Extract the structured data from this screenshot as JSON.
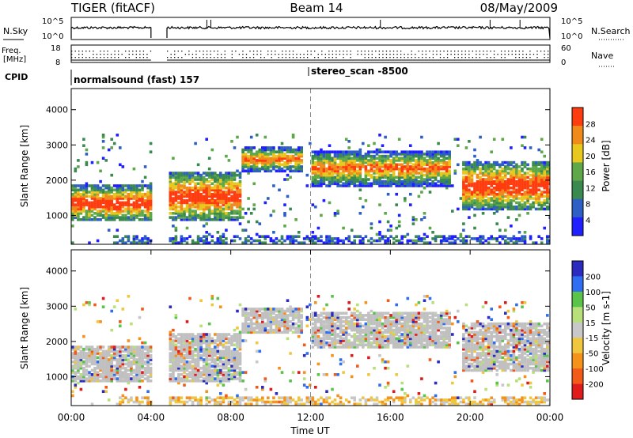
{
  "header": {
    "radar": "TIGER (fitACF)",
    "beam": "Beam 14",
    "date": "08/May/2009"
  },
  "noise_panel": {
    "left_label": "N.Sky",
    "right_label": "N.Search",
    "left_ticks": [
      "10^5",
      "10^0"
    ],
    "right_ticks": [
      "10^5",
      "10^0"
    ]
  },
  "freq_panel": {
    "label_line1": "Freq.",
    "label_line2": "[MHz]",
    "left_ticks": [
      "18",
      "8"
    ],
    "right_ticks": [
      "60",
      "0"
    ],
    "right_label": "Nave"
  },
  "cpid_panel": {
    "label": "CPID",
    "programs": [
      {
        "name": "normalsound (fast) 157",
        "start_hour": 0
      },
      {
        "name": "stereo_scan -8500",
        "start_hour": 12
      }
    ]
  },
  "colors": {
    "power_scale": [
      "#1f1fff",
      "#2e5fc4",
      "#3a8a4f",
      "#5fa84a",
      "#e8c81e",
      "#f08a1c",
      "#ff3c10"
    ],
    "velocity_scale": [
      "#2b2bbf",
      "#2f6ef0",
      "#59c34a",
      "#b8e07a",
      "#c8c8c8",
      "#f0c63e",
      "#f4921c",
      "#f25a1a",
      "#e01b1b"
    ],
    "ground_scatter": "#c0c0c0"
  },
  "chart_data": [
    {
      "type": "heatmap",
      "panel": "power",
      "xlabel": "",
      "ylabel": "Slant Range [km]",
      "xlim": [
        "00:00",
        "00:00"
      ],
      "ylim": [
        180,
        4600
      ],
      "yticks": [
        "4000",
        "3000",
        "2000",
        "1000"
      ],
      "data_gaps_hours": [
        [
          4.0,
          4.8
        ]
      ],
      "colorbar": {
        "label": "Power [dB]",
        "ticks": [
          "28",
          "24",
          "20",
          "16",
          "12",
          "8",
          "4"
        ]
      },
      "bands": [
        {
          "t0": 0.0,
          "t1": 4.0,
          "r0": 800,
          "r1": 1800,
          "level": "high"
        },
        {
          "t0": 4.8,
          "t1": 8.5,
          "r0": 800,
          "r1": 2200,
          "level": "high"
        },
        {
          "t0": 8.5,
          "t1": 11.6,
          "r0": 2200,
          "r1": 2900,
          "level": "mid"
        },
        {
          "t0": 12.0,
          "t1": 19.0,
          "r0": 1800,
          "r1": 2800,
          "level": "mid"
        },
        {
          "t0": 19.5,
          "t1": 24.0,
          "r0": 1100,
          "r1": 2500,
          "level": "high"
        }
      ]
    },
    {
      "type": "heatmap",
      "panel": "velocity",
      "xlabel": "Time UT",
      "ylabel": "Slant Range [km]",
      "xlim": [
        "00:00",
        "00:00"
      ],
      "ylim": [
        180,
        4600
      ],
      "xticks": [
        "00:00",
        "04:00",
        "08:00",
        "12:00",
        "16:00",
        "20:00",
        "00:00"
      ],
      "yticks": [
        "4000",
        "3000",
        "2000",
        "1000"
      ],
      "colorbar": {
        "label": "Velocity [m s-1]",
        "ticks": [
          "200",
          "100",
          "50",
          "15",
          "-15",
          "-50",
          "-100",
          "-200"
        ]
      }
    }
  ]
}
